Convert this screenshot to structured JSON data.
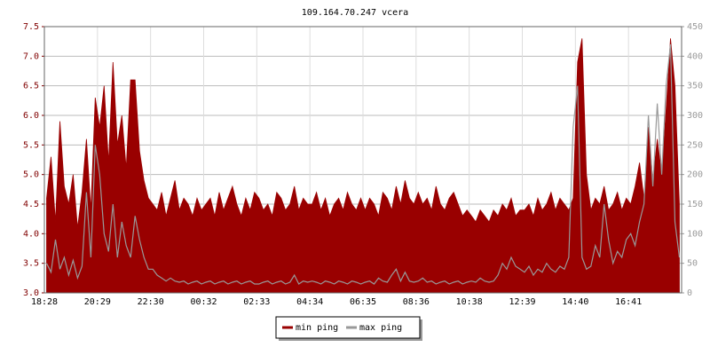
{
  "chart_data": {
    "type": "line",
    "title": "109.164.70.247 vcera",
    "categories": [
      "18:28",
      null,
      null,
      null,
      null,
      null,
      null,
      null,
      null,
      null,
      null,
      null,
      "20:29",
      null,
      null,
      null,
      null,
      null,
      null,
      null,
      null,
      null,
      null,
      null,
      "22:30",
      null,
      null,
      null,
      null,
      null,
      null,
      null,
      null,
      null,
      null,
      null,
      "00:32",
      null,
      null,
      null,
      null,
      null,
      null,
      null,
      null,
      null,
      null,
      null,
      "02:33",
      null,
      null,
      null,
      null,
      null,
      null,
      null,
      null,
      null,
      null,
      null,
      "04:34",
      null,
      null,
      null,
      null,
      null,
      null,
      null,
      null,
      null,
      null,
      null,
      "06:35",
      null,
      null,
      null,
      null,
      null,
      null,
      null,
      null,
      null,
      null,
      null,
      "08:36",
      null,
      null,
      null,
      null,
      null,
      null,
      null,
      null,
      null,
      null,
      null,
      "10:38",
      null,
      null,
      null,
      null,
      null,
      null,
      null,
      null,
      null,
      null,
      null,
      "12:39",
      null,
      null,
      null,
      null,
      null,
      null,
      null,
      null,
      null,
      null,
      null,
      "14:40",
      null,
      null,
      null,
      null,
      null,
      null,
      null,
      null,
      null,
      null,
      null,
      "16:41",
      null,
      null,
      null,
      null,
      null,
      null,
      null,
      null,
      null,
      null,
      null
    ],
    "series": [
      {
        "name": "min ping",
        "color": "#990000",
        "fill": true,
        "values": [
          4.6,
          5.3,
          4.2,
          5.9,
          4.8,
          4.5,
          5.0,
          4.1,
          4.7,
          5.6,
          4.4,
          6.3,
          5.8,
          6.5,
          5.2,
          6.9,
          5.5,
          6.0,
          5.1,
          6.6,
          6.6,
          5.4,
          4.9,
          4.6,
          4.5,
          4.4,
          4.7,
          4.3,
          4.6,
          4.9,
          4.4,
          4.6,
          4.5,
          4.3,
          4.6,
          4.4,
          4.5,
          4.6,
          4.3,
          4.7,
          4.4,
          4.6,
          4.8,
          4.5,
          4.3,
          4.6,
          4.4,
          4.7,
          4.6,
          4.4,
          4.5,
          4.3,
          4.7,
          4.6,
          4.4,
          4.5,
          4.8,
          4.4,
          4.6,
          4.5,
          4.5,
          4.7,
          4.4,
          4.6,
          4.3,
          4.5,
          4.6,
          4.4,
          4.7,
          4.5,
          4.4,
          4.6,
          4.4,
          4.6,
          4.5,
          4.3,
          4.7,
          4.6,
          4.4,
          4.8,
          4.5,
          4.9,
          4.6,
          4.5,
          4.7,
          4.5,
          4.6,
          4.4,
          4.8,
          4.5,
          4.4,
          4.6,
          4.7,
          4.5,
          4.3,
          4.4,
          4.3,
          4.2,
          4.4,
          4.3,
          4.2,
          4.4,
          4.3,
          4.5,
          4.4,
          4.6,
          4.3,
          4.4,
          4.4,
          4.5,
          4.3,
          4.6,
          4.4,
          4.5,
          4.7,
          4.4,
          4.6,
          4.5,
          4.4,
          4.6,
          6.9,
          7.3,
          5.0,
          4.4,
          4.6,
          4.5,
          4.8,
          4.4,
          4.5,
          4.7,
          4.4,
          4.6,
          4.5,
          4.8,
          5.2,
          4.6,
          5.8,
          4.9,
          5.6,
          5.0,
          6.1,
          7.3,
          6.5,
          4.5
        ]
      },
      {
        "name": "max ping",
        "color": "#999999",
        "axis": "y2",
        "values": [
          50,
          35,
          90,
          40,
          60,
          30,
          55,
          25,
          45,
          170,
          60,
          250,
          200,
          100,
          70,
          150,
          60,
          120,
          80,
          60,
          130,
          90,
          60,
          40,
          40,
          30,
          25,
          20,
          25,
          20,
          18,
          20,
          15,
          18,
          20,
          15,
          18,
          20,
          15,
          18,
          20,
          15,
          18,
          20,
          15,
          18,
          20,
          15,
          15,
          18,
          20,
          15,
          18,
          20,
          15,
          18,
          30,
          15,
          20,
          18,
          20,
          18,
          15,
          20,
          18,
          15,
          20,
          18,
          15,
          20,
          18,
          15,
          18,
          20,
          15,
          25,
          20,
          18,
          30,
          40,
          20,
          35,
          20,
          18,
          20,
          25,
          18,
          20,
          15,
          18,
          20,
          15,
          18,
          20,
          15,
          18,
          20,
          18,
          25,
          20,
          18,
          20,
          30,
          50,
          40,
          60,
          45,
          40,
          35,
          45,
          30,
          40,
          35,
          50,
          40,
          35,
          45,
          40,
          60,
          280,
          350,
          60,
          40,
          45,
          80,
          60,
          150,
          90,
          50,
          70,
          60,
          90,
          100,
          80,
          120,
          150,
          300,
          180,
          320,
          200,
          350,
          420,
          120,
          60
        ]
      }
    ],
    "ylim": [
      3.0,
      7.5
    ],
    "yticks": [
      {
        "value": 3.0,
        "label": "3.0"
      },
      {
        "value": 3.5,
        "label": "3.5"
      },
      {
        "value": 4.0,
        "label": "4.0"
      },
      {
        "value": 4.5,
        "label": "4.5"
      },
      {
        "value": 5.0,
        "label": "5.0"
      },
      {
        "value": 5.5,
        "label": "5.5"
      },
      {
        "value": 6.0,
        "label": "6.0"
      },
      {
        "value": 6.5,
        "label": "6.5"
      },
      {
        "value": 7.0,
        "label": "7.0"
      },
      {
        "value": 7.5,
        "label": "7.5"
      }
    ],
    "y2lim": [
      0,
      450
    ],
    "y2ticks": [
      0,
      50,
      100,
      150,
      200,
      250,
      300,
      350,
      400,
      450
    ],
    "grid": true
  }
}
